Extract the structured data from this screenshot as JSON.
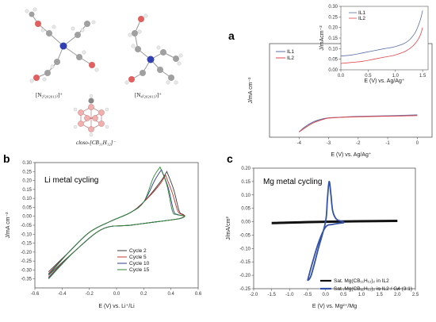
{
  "molecules": {
    "m1": "[N₂₍₂₀₂₀₁₃₎]⁺",
    "m2": "[N₄₍₂₀₂₀₁₃₎]⁺",
    "m3": "closo-[CB₁₁H₁₂]⁻"
  },
  "chart_data": [
    {
      "panel": "a",
      "type": "line",
      "xlabel": "E (V) vs. Ag/Ag⁺",
      "ylabel": "J/mA cm⁻²",
      "xlim": [
        -5,
        0.5
      ],
      "ylim": [
        -1,
        3.5
      ],
      "x_ticks": [
        "-4",
        "-3",
        "-2",
        "-1",
        "0"
      ],
      "y_ticks": [],
      "legend_position": "top-left",
      "colors": [
        "#5a6fa8",
        "#e0474c"
      ],
      "series": [
        {
          "name": "IL1",
          "x": [
            -4,
            -3.8,
            -3.5,
            -3.2,
            -3.0,
            -2.5,
            -2.0,
            -1.0,
            0.0
          ],
          "y": [
            -0.75,
            -0.5,
            -0.25,
            -0.12,
            -0.07,
            -0.03,
            0.0,
            0.03,
            0.07
          ]
        },
        {
          "name": "IL2",
          "x": [
            -4,
            -3.8,
            -3.5,
            -3.2,
            -3.0,
            -2.5,
            -2.0,
            -1.0,
            0.0
          ],
          "y": [
            -0.75,
            -0.55,
            -0.3,
            -0.15,
            -0.08,
            -0.04,
            -0.02,
            0.01,
            0.04
          ]
        }
      ],
      "inset": {
        "xlabel": "E (V) vs. Ag/Ag⁺",
        "ylabel": "J/mAcm⁻²",
        "xlim": [
          0,
          1.6
        ],
        "ylim": [
          0,
          0.3
        ],
        "x_ticks": [
          "0.0",
          "0.5",
          "1.0",
          "1.5"
        ],
        "y_ticks": [
          "0.00",
          "0.05",
          "0.10",
          "0.15",
          "0.20",
          "0.25",
          "0.30"
        ],
        "series": [
          {
            "name": "IL1",
            "x": [
              0,
              0.2,
              0.4,
              0.6,
              0.8,
              1.0,
              1.2,
              1.35,
              1.45,
              1.5
            ],
            "y": [
              0.065,
              0.07,
              0.08,
              0.09,
              0.1,
              0.11,
              0.13,
              0.17,
              0.23,
              0.28
            ]
          },
          {
            "name": "IL2",
            "x": [
              0,
              0.2,
              0.4,
              0.6,
              0.8,
              1.0,
              1.2,
              1.35,
              1.45,
              1.5
            ],
            "y": [
              0.03,
              0.035,
              0.04,
              0.05,
              0.06,
              0.07,
              0.09,
              0.12,
              0.16,
              0.2
            ]
          }
        ]
      }
    },
    {
      "panel": "b",
      "type": "line",
      "title": "Li metal cycling",
      "xlabel": "E (V) vs. Li⁺/Li",
      "ylabel": "J/mA cm⁻²",
      "xlim": [
        -0.6,
        0.6
      ],
      "ylim": [
        -0.4,
        0.3
      ],
      "x_ticks": [
        "-0.6",
        "-0.4",
        "-0.2",
        "0.0",
        "0.2",
        "0.4",
        "0.6"
      ],
      "y_ticks": [
        "-0.35",
        "-0.30",
        "-0.25",
        "-0.20",
        "-0.15",
        "-0.10",
        "-0.05",
        "0.00",
        "0.05",
        "0.10",
        "0.15",
        "0.20",
        "0.25",
        "0.30"
      ],
      "legend_position": "bottom-right",
      "colors": [
        "#3a3a3a",
        "#c0392b",
        "#2c3e8f",
        "#2e8b3a"
      ],
      "series": [
        {
          "name": "Cycle 2",
          "peak": [
            0.37,
            0.25
          ],
          "low": -0.33
        },
        {
          "name": "Cycle 5",
          "peak": [
            0.36,
            0.23
          ],
          "low": -0.34
        },
        {
          "name": "Cycle 10",
          "peak": [
            0.33,
            0.26
          ],
          "low": -0.345
        },
        {
          "name": "Cycle 15",
          "peak": [
            0.32,
            0.275
          ],
          "low": -0.35
        }
      ]
    },
    {
      "panel": "c",
      "type": "line",
      "title": "Mg metal cycling",
      "xlabel": "E (V) vs. Mg²⁺/Mg",
      "ylabel": "J/mA/cm²",
      "xlim": [
        -2.0,
        2.5
      ],
      "ylim": [
        -0.25,
        0.2
      ],
      "x_ticks": [
        "-2.0",
        "-1.5",
        "-1.0",
        "-0.5",
        "0.0",
        "0.5",
        "1.0",
        "1.5",
        "2.0",
        "2.5"
      ],
      "y_ticks": [
        "-0.25",
        "-0.20",
        "-0.15",
        "-0.10",
        "-0.05",
        "0.00",
        "0.05",
        "0.10",
        "0.15",
        "0.20"
      ],
      "legend_position": "bottom-right",
      "colors": [
        "#111111",
        "#3452a8"
      ],
      "series": [
        {
          "name": "Sat. Mg(CB₁₁H₁₂)₂ in IL2",
          "x": [
            -1.5,
            0,
            2.0
          ],
          "y": [
            -0.005,
            0.0,
            0.003
          ]
        },
        {
          "name": "Sat. Mg(CB₁₁H₁₂)₂ in IL2 / G4 (3:1)",
          "x": [
            -0.5,
            -0.4,
            -0.2,
            0.0,
            0.05,
            0.1,
            0.15,
            0.2,
            0.3,
            0.5
          ],
          "y": [
            -0.22,
            -0.2,
            -0.1,
            0.0,
            0.08,
            0.15,
            0.1,
            0.04,
            0.01,
            0.0
          ]
        }
      ]
    }
  ]
}
